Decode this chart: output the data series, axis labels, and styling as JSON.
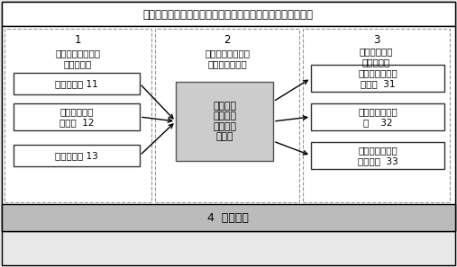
{
  "title": "基于被测地形特点的机载激光雷达参数自适应调整系统组成图",
  "title_fontsize": 8.5,
  "main_bg": "#ffffff",
  "title_bg": "#ffffff",
  "box_bg": "#ffffff",
  "center_box_bg": "#cccccc",
  "bottom_bar_bg": "#aaaaaa",
  "dashed_border": "#888888",
  "solid_border": "#000000",
  "arrow_color": "#000000",
  "text_color": "#000000",
  "section1_num": "1",
  "section1_title": "地形特征及飞行参\n数测量装置",
  "section2_num": "2",
  "section2_title": "激光扫描仪参数自\n适应设计控制器",
  "section3_num": "3",
  "section3_title": "激光扫描仪参\n数调节装置",
  "box1_text": "激光扫描仪 11",
  "box2_text": "飞机飞行速度\n调量仪  12",
  "box3_text": "航空照相机 13",
  "center_box_text": "激光扫描\n仪参数自\n适应设计\n控制器",
  "right_box1_text": "脉冲重复频率调\n节装置  31",
  "right_box2_text": "扫描频率调节装\n置    32",
  "right_box3_text": "激光扫描视场角\n调节装置  33",
  "bottom_text": "4  机载平台",
  "fig_w": 5.07,
  "fig_h": 2.97,
  "dpi": 100
}
